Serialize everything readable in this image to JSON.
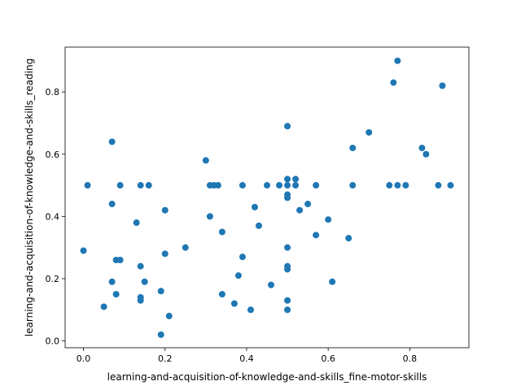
{
  "chart_data": {
    "type": "scatter",
    "title": "",
    "xlabel": "learning-and-acquisition-of-knowledge-and-skills_fine-motor-skills",
    "ylabel": "learning-and-acquisition-of-knowledge-and-skills_reading",
    "xlim": [
      -0.045,
      0.945
    ],
    "ylim": [
      -0.022,
      0.944
    ],
    "xticks": [
      0.0,
      0.2,
      0.4,
      0.6,
      0.8
    ],
    "xtick_labels": [
      "0.0",
      "0.2",
      "0.4",
      "0.6",
      "0.8"
    ],
    "yticks": [
      0.0,
      0.2,
      0.4,
      0.6,
      0.8
    ],
    "ytick_labels": [
      "0.0",
      "0.2",
      "0.4",
      "0.6",
      "0.8"
    ],
    "grid": false,
    "legend": "none",
    "marker_color": "#1f77b4",
    "points": [
      [
        0.0,
        0.29
      ],
      [
        0.01,
        0.5
      ],
      [
        0.05,
        0.11
      ],
      [
        0.07,
        0.64
      ],
      [
        0.07,
        0.44
      ],
      [
        0.07,
        0.19
      ],
      [
        0.08,
        0.26
      ],
      [
        0.08,
        0.15
      ],
      [
        0.09,
        0.5
      ],
      [
        0.09,
        0.26
      ],
      [
        0.13,
        0.38
      ],
      [
        0.14,
        0.5
      ],
      [
        0.14,
        0.24
      ],
      [
        0.14,
        0.14
      ],
      [
        0.14,
        0.13
      ],
      [
        0.15,
        0.19
      ],
      [
        0.16,
        0.5
      ],
      [
        0.19,
        0.16
      ],
      [
        0.19,
        0.02
      ],
      [
        0.2,
        0.42
      ],
      [
        0.2,
        0.28
      ],
      [
        0.21,
        0.08
      ],
      [
        0.25,
        0.3
      ],
      [
        0.3,
        0.58
      ],
      [
        0.31,
        0.5
      ],
      [
        0.31,
        0.4
      ],
      [
        0.32,
        0.5
      ],
      [
        0.33,
        0.5
      ],
      [
        0.34,
        0.35
      ],
      [
        0.34,
        0.15
      ],
      [
        0.37,
        0.12
      ],
      [
        0.38,
        0.21
      ],
      [
        0.39,
        0.5
      ],
      [
        0.39,
        0.27
      ],
      [
        0.41,
        0.1
      ],
      [
        0.42,
        0.43
      ],
      [
        0.43,
        0.37
      ],
      [
        0.45,
        0.5
      ],
      [
        0.46,
        0.18
      ],
      [
        0.48,
        0.5
      ],
      [
        0.5,
        0.69
      ],
      [
        0.5,
        0.52
      ],
      [
        0.5,
        0.5
      ],
      [
        0.5,
        0.47
      ],
      [
        0.5,
        0.46
      ],
      [
        0.5,
        0.3
      ],
      [
        0.5,
        0.24
      ],
      [
        0.5,
        0.23
      ],
      [
        0.5,
        0.13
      ],
      [
        0.5,
        0.1
      ],
      [
        0.52,
        0.52
      ],
      [
        0.52,
        0.5
      ],
      [
        0.53,
        0.42
      ],
      [
        0.55,
        0.44
      ],
      [
        0.57,
        0.5
      ],
      [
        0.57,
        0.34
      ],
      [
        0.6,
        0.39
      ],
      [
        0.61,
        0.19
      ],
      [
        0.65,
        0.33
      ],
      [
        0.66,
        0.62
      ],
      [
        0.66,
        0.5
      ],
      [
        0.7,
        0.67
      ],
      [
        0.75,
        0.5
      ],
      [
        0.76,
        0.83
      ],
      [
        0.77,
        0.9
      ],
      [
        0.77,
        0.5
      ],
      [
        0.79,
        0.5
      ],
      [
        0.83,
        0.62
      ],
      [
        0.84,
        0.6
      ],
      [
        0.87,
        0.5
      ],
      [
        0.88,
        0.82
      ],
      [
        0.9,
        0.5
      ]
    ]
  }
}
